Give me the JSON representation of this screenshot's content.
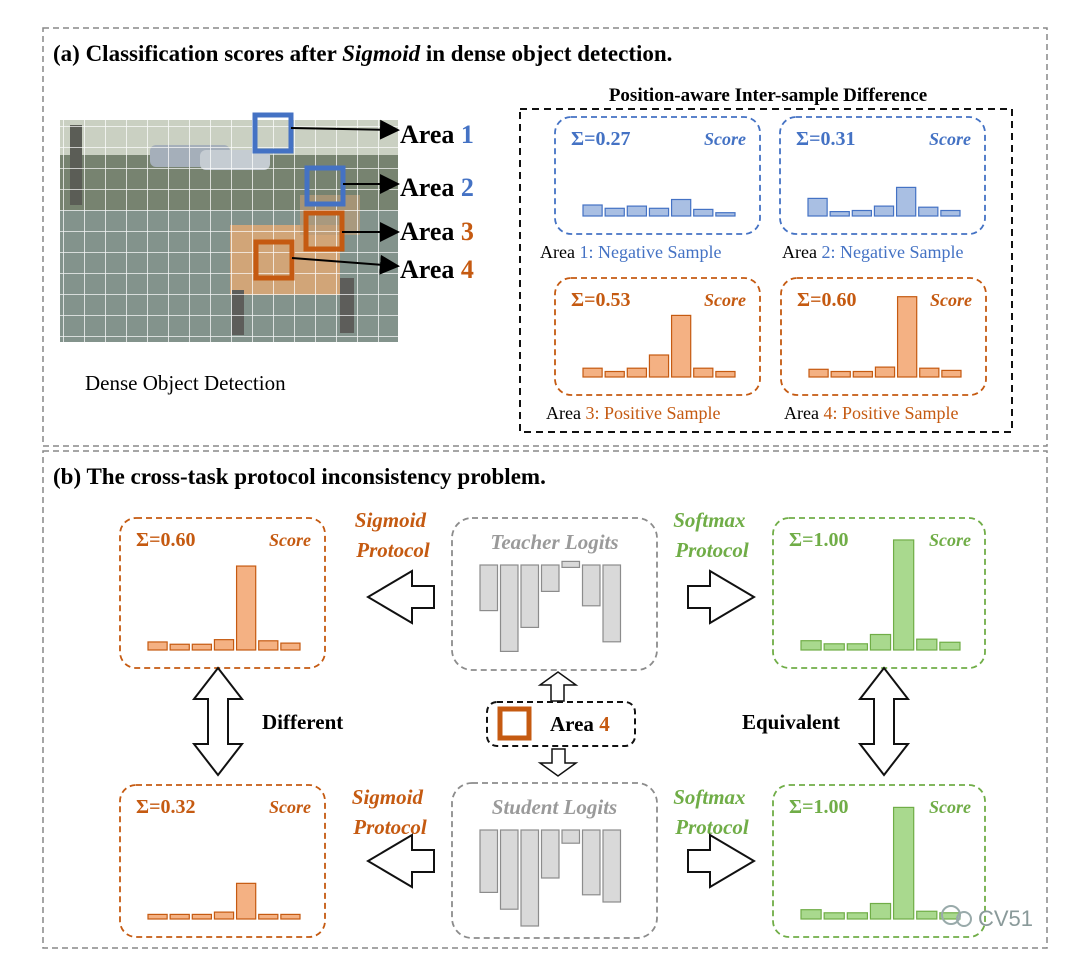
{
  "colors": {
    "blue": "#4472C4",
    "blue_fill": "#A9BFE3",
    "orange": "#C55A11",
    "orange_fill": "#F4B183",
    "green": "#70AD47",
    "green_fill": "#A9D98E",
    "gray": "#8C8C8C",
    "gray_fill": "#D9D9D9"
  },
  "panel_a": {
    "title_prefix": "(a) Classification scores after ",
    "title_italic": "Sigmoid",
    "title_suffix": " in dense object detection.",
    "image_caption": "Dense Object Detection",
    "areas": [
      {
        "word": "Area",
        "num": "1",
        "color": "blue"
      },
      {
        "word": "Area",
        "num": "2",
        "color": "blue"
      },
      {
        "word": "Area",
        "num": "3",
        "color": "orange"
      },
      {
        "word": "Area",
        "num": "4",
        "color": "orange"
      }
    ],
    "dashed_title": "Position-aware Inter-sample Difference",
    "score_boxes": [
      {
        "sum": "Σ=0.27",
        "score": "Score",
        "color": "blue",
        "caption_a": "Area ",
        "caption_b": "1: Negative Sample",
        "bars": [
          0.1,
          0.07,
          0.09,
          0.07,
          0.15,
          0.06,
          0.03
        ]
      },
      {
        "sum": "Σ=0.31",
        "score": "Score",
        "color": "blue",
        "caption_a": "Area ",
        "caption_b": "2: Negative Sample",
        "bars": [
          0.16,
          0.04,
          0.05,
          0.09,
          0.26,
          0.08,
          0.05
        ]
      },
      {
        "sum": "Σ=0.53",
        "score": "Score",
        "color": "orange",
        "caption_a": "Area ",
        "caption_b": "3: Positive Sample",
        "bars": [
          0.08,
          0.05,
          0.08,
          0.2,
          0.56,
          0.08,
          0.05
        ]
      },
      {
        "sum": "Σ=0.60",
        "score": "Score",
        "color": "orange",
        "caption_a": "Area ",
        "caption_b": "4: Positive Sample",
        "bars": [
          0.07,
          0.05,
          0.05,
          0.09,
          0.73,
          0.08,
          0.06
        ]
      }
    ]
  },
  "panel_b": {
    "title": "(b) The cross-task protocol inconsistency problem.",
    "teacher_label": "Teacher Logits",
    "student_label": "Student Logits",
    "sigmoid_line1": "Sigmoid",
    "sigmoid_line2": "Protocol",
    "softmax_line1": "Softmax",
    "softmax_line2": "Protocol",
    "different": "Different",
    "equivalent": "Equivalent",
    "area_word": "Area",
    "area_num": "4",
    "teacher_logits": [
      -1.9,
      -3.6,
      -2.6,
      -1.1,
      0.15,
      -1.7,
      -3.2
    ],
    "student_logits": [
      -2.6,
      -3.3,
      -4.0,
      -2.0,
      -0.55,
      -2.7,
      -3.0
    ],
    "sig_teacher": {
      "sum": "Σ=0.60",
      "score": "Score",
      "bars": [
        0.07,
        0.05,
        0.05,
        0.09,
        0.73,
        0.08,
        0.06
      ]
    },
    "sig_student": {
      "sum": "Σ=0.32",
      "score": "Score",
      "bars": [
        0.04,
        0.04,
        0.04,
        0.06,
        0.31,
        0.04,
        0.04
      ]
    },
    "soft_teacher": {
      "sum": "Σ=1.00",
      "score": "Score",
      "bars": [
        0.06,
        0.04,
        0.04,
        0.1,
        0.71,
        0.07,
        0.05
      ]
    },
    "soft_student": {
      "sum": "Σ=1.00",
      "score": "Score",
      "bars": [
        0.06,
        0.04,
        0.04,
        0.1,
        0.72,
        0.05,
        0.04
      ]
    }
  },
  "watermark": "CV51"
}
